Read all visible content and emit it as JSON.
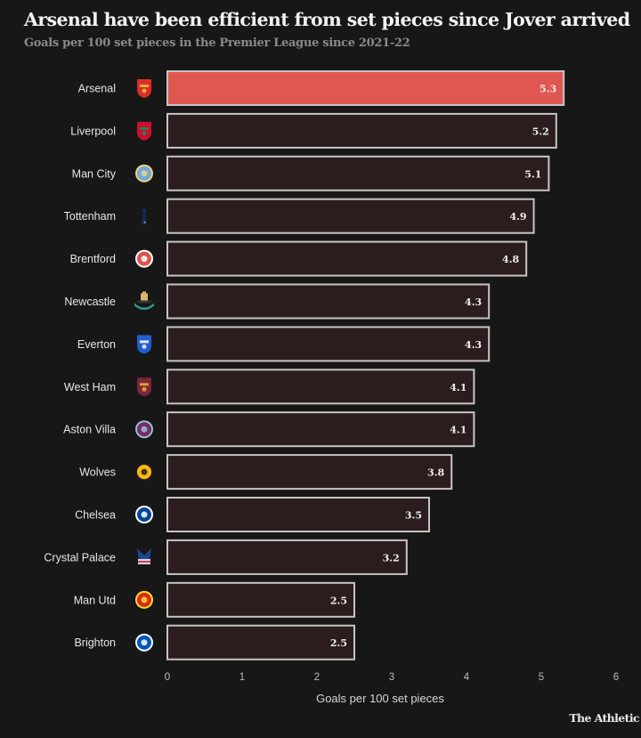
{
  "header": {
    "title": "Arsenal have been efficient from set pieces since Jover arrived",
    "subtitle": "Goals per 100 set pieces in the Premier League since 2021-22"
  },
  "footer": {
    "credit": "The Athletic"
  },
  "colors": {
    "background": "#171717",
    "highlight_bar": "#e05651",
    "default_bar": "#2b1d1e",
    "bar_border": "#c9c3c3",
    "label_text": "#e6e6e6",
    "tick_text": "#bdbdbd"
  },
  "chart_data": {
    "type": "bar",
    "orientation": "horizontal",
    "title": "Arsenal have been efficient from set pieces since Jover arrived",
    "subtitle": "Goals per 100 set pieces in the Premier League since 2021-22",
    "xlabel": "Goals per 100 set pieces",
    "ylabel": "",
    "xlim": [
      0,
      6
    ],
    "xticks": [
      0,
      1,
      2,
      3,
      4,
      5,
      6
    ],
    "grid": false,
    "legend": "none",
    "highlight": "Arsenal",
    "categories": [
      "Arsenal",
      "Liverpool",
      "Man City",
      "Tottenham",
      "Brentford",
      "Newcastle",
      "Everton",
      "West Ham",
      "Aston Villa",
      "Wolves",
      "Chelsea",
      "Crystal Palace",
      "Man Utd",
      "Brighton"
    ],
    "values": [
      5.3,
      5.2,
      5.1,
      4.9,
      4.8,
      4.3,
      4.3,
      4.1,
      4.1,
      3.8,
      3.5,
      3.2,
      2.5,
      2.5
    ],
    "value_labels": [
      "5.3",
      "5.2",
      "5.1",
      "4.9",
      "4.8",
      "4.3",
      "4.3",
      "4.1",
      "4.1",
      "3.8",
      "3.5",
      "3.2",
      "2.5",
      "2.5"
    ],
    "crests": [
      {
        "icon": "arsenal-crest-icon",
        "primary": "#db2d2a",
        "secondary": "#f5c542",
        "shape": "shield"
      },
      {
        "icon": "liverpool-crest-icon",
        "primary": "#c8102e",
        "secondary": "#1e8a5a",
        "shape": "shield"
      },
      {
        "icon": "man-city-crest-icon",
        "primary": "#6cabdd",
        "secondary": "#f3d27a",
        "shape": "circle"
      },
      {
        "icon": "tottenham-crest-icon",
        "primary": "#1b2a57",
        "secondary": "#ffffff",
        "shape": "cockerel"
      },
      {
        "icon": "brentford-crest-icon",
        "primary": "#d9534f",
        "secondary": "#ffffff",
        "shape": "circle"
      },
      {
        "icon": "newcastle-crest-icon",
        "primary": "#2a9d8f",
        "secondary": "#d7b56d",
        "shape": "castle"
      },
      {
        "icon": "everton-crest-icon",
        "primary": "#1f5fcf",
        "secondary": "#ffffff",
        "shape": "shield"
      },
      {
        "icon": "west-ham-crest-icon",
        "primary": "#7a263a",
        "secondary": "#f3b13b",
        "shape": "shield"
      },
      {
        "icon": "aston-villa-crest-icon",
        "primary": "#7b2c5e",
        "secondary": "#95bfe5",
        "shape": "circle"
      },
      {
        "icon": "wolves-crest-icon",
        "primary": "#fdb913",
        "secondary": "#231f20",
        "shape": "circle"
      },
      {
        "icon": "chelsea-crest-icon",
        "primary": "#034694",
        "secondary": "#ffffff",
        "shape": "circle"
      },
      {
        "icon": "crystal-palace-crest-icon",
        "primary": "#1b458f",
        "secondary": "#c4122e",
        "shape": "eagle"
      },
      {
        "icon": "man-utd-crest-icon",
        "primary": "#da291c",
        "secondary": "#fbe122",
        "shape": "circle"
      },
      {
        "icon": "brighton-crest-icon",
        "primary": "#0057b8",
        "secondary": "#ffffff",
        "shape": "circle"
      }
    ]
  }
}
